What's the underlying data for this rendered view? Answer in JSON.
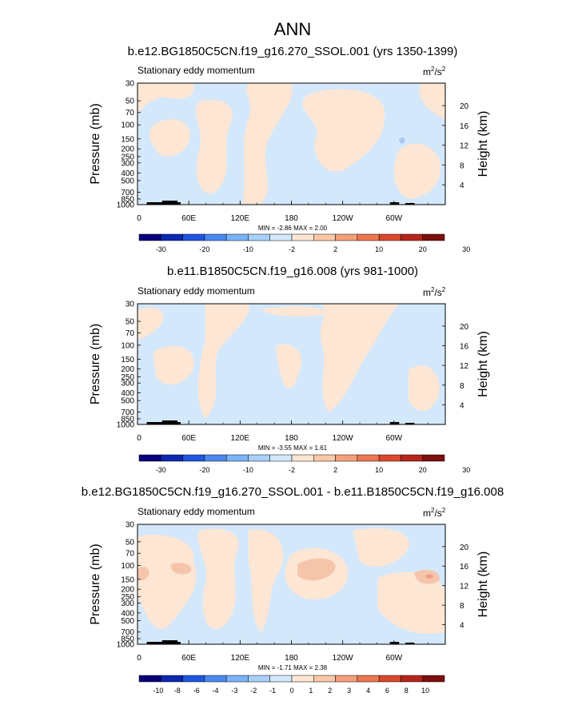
{
  "main_title": "ANN",
  "palettes": {
    "abs": [
      "#08007a",
      "#0b28b0",
      "#1f55e0",
      "#4a88f0",
      "#7ab3f8",
      "#a8d0fa",
      "#d4e8fc",
      "#fde6d4",
      "#fac8a8",
      "#f5a07a",
      "#ec7650",
      "#d9482c",
      "#b6241a",
      "#7d0f0e"
    ],
    "diff": [
      "#08007a",
      "#0b28b0",
      "#1f55e0",
      "#4a88f0",
      "#7ab3f8",
      "#a8d0fa",
      "#d4e8fc",
      "#fde6d4",
      "#fac8a8",
      "#f5a07a",
      "#ec7650",
      "#d9482c",
      "#b6241a",
      "#7d0f0e"
    ]
  },
  "panels": [
    {
      "title": "b.e12.BG1850C5CN.f19_g16.270_SSOL.001 (yrs 1350-1399)",
      "left_label": "Stationary eddy momentum",
      "units_base": "m",
      "units_sup1": "2",
      "units_mid": "/s",
      "units_sup2": "2",
      "stats": "MIN = -2.86  MAX =  2.00",
      "colorbar_labels": [
        "-30",
        "-20",
        "-10",
        "-2",
        "2",
        "10",
        "20",
        "30"
      ],
      "palette": "abs"
    },
    {
      "title": "b.e11.B1850C5CN.f19_g16.008 (yrs 981-1000)",
      "left_label": "Stationary eddy momentum",
      "units_base": "m",
      "units_sup1": "2",
      "units_mid": "/s",
      "units_sup2": "2",
      "stats": "MIN = -3.55  MAX =  1.61",
      "colorbar_labels": [
        "-30",
        "-20",
        "-10",
        "-2",
        "2",
        "10",
        "20",
        "30"
      ],
      "palette": "abs"
    },
    {
      "title": "b.e12.BG1850C5CN.f19_g16.270_SSOL.001 - b.e11.B1850C5CN.f19_g16.008",
      "left_label": "Stationary eddy momentum",
      "units_base": "m",
      "units_sup1": "2",
      "units_mid": "/s",
      "units_sup2": "2",
      "stats": "MIN = -1.71  MAX =  2.38",
      "colorbar_labels": [
        "-10",
        "-8",
        "-6",
        "-4",
        "-3",
        "-2",
        "-1",
        "0",
        "1",
        "2",
        "3",
        "4",
        "6",
        "8",
        "10"
      ],
      "palette": "diff"
    }
  ],
  "chart_data": [
    {
      "type": "heatmap",
      "title": "b.e12.BG1850C5CN.f19_g16.270_SSOL.001 (yrs 1350-1399)",
      "xlabel": "",
      "ylabel": "Pressure (mb)",
      "y2label": "Height (km)",
      "x_ticks": [
        "0",
        "60E",
        "120E",
        "180",
        "120W",
        "60W"
      ],
      "y_ticks": [
        "30",
        "50",
        "70",
        "100",
        "150",
        "200",
        "250",
        "300",
        "400",
        "500",
        "700",
        "850",
        "1000"
      ],
      "y2_ticks": [
        "20",
        "16",
        "12",
        "8",
        "4"
      ],
      "ylim": [
        1000,
        30
      ],
      "y_scale": "log",
      "min": -2.86,
      "max": 2.0,
      "colorbar_labels": [
        "-30",
        "-20",
        "-10",
        "-2",
        "2",
        "10",
        "20",
        "30"
      ]
    },
    {
      "type": "heatmap",
      "title": "b.e11.B1850C5CN.f19_g16.008 (yrs 981-1000)",
      "xlabel": "",
      "ylabel": "Pressure (mb)",
      "y2label": "Height (km)",
      "x_ticks": [
        "0",
        "60E",
        "120E",
        "180",
        "120W",
        "60W"
      ],
      "y_ticks": [
        "30",
        "50",
        "70",
        "100",
        "150",
        "200",
        "250",
        "300",
        "400",
        "500",
        "700",
        "850",
        "1000"
      ],
      "y2_ticks": [
        "20",
        "16",
        "12",
        "8",
        "4"
      ],
      "ylim": [
        1000,
        30
      ],
      "y_scale": "log",
      "min": -3.55,
      "max": 1.61,
      "colorbar_labels": [
        "-30",
        "-20",
        "-10",
        "-2",
        "2",
        "10",
        "20",
        "30"
      ]
    },
    {
      "type": "heatmap",
      "title": "b.e12.BG1850C5CN.f19_g16.270_SSOL.001 - b.e11.B1850C5CN.f19_g16.008",
      "xlabel": "",
      "ylabel": "Pressure (mb)",
      "y2label": "Height (km)",
      "x_ticks": [
        "0",
        "60E",
        "120E",
        "180",
        "120W",
        "60W"
      ],
      "y_ticks": [
        "30",
        "50",
        "70",
        "100",
        "150",
        "200",
        "250",
        "300",
        "400",
        "500",
        "700",
        "850",
        "1000"
      ],
      "y2_ticks": [
        "20",
        "16",
        "12",
        "8",
        "4"
      ],
      "ylim": [
        1000,
        30
      ],
      "y_scale": "log",
      "min": -1.71,
      "max": 2.38,
      "colorbar_labels": [
        "-10",
        "-8",
        "-6",
        "-4",
        "-3",
        "-2",
        "-1",
        "0",
        "1",
        "2",
        "3",
        "4",
        "6",
        "8",
        "10"
      ]
    }
  ]
}
